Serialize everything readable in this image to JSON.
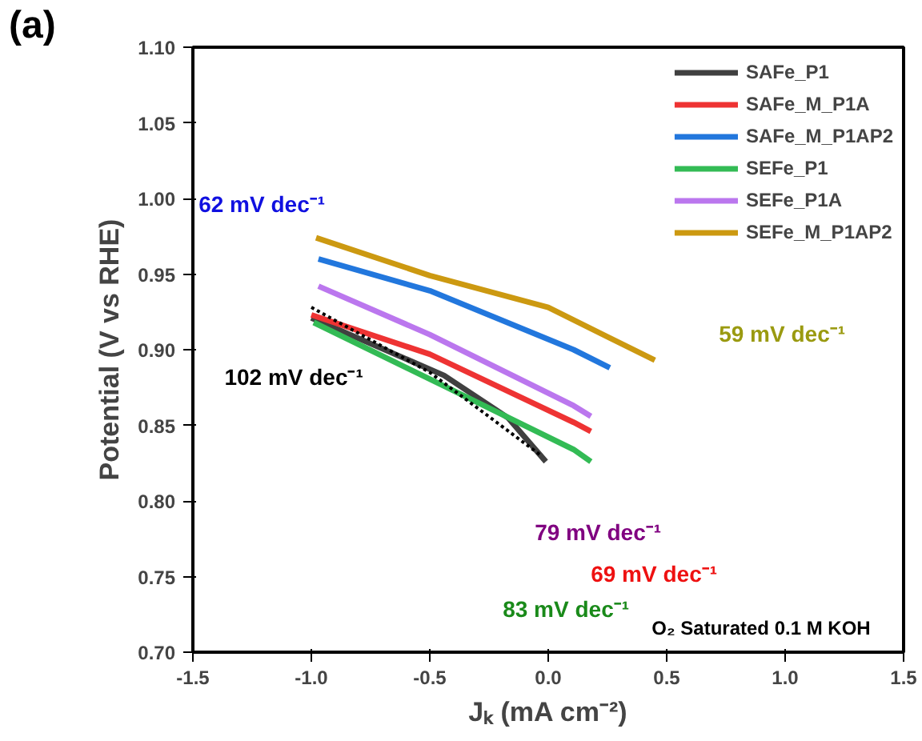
{
  "chart_data": {
    "type": "line",
    "xlabel": "Jₖ (mA cm⁻²)",
    "ylabel": "Potential (V vs RHE)",
    "xlim": [
      -1.5,
      1.5
    ],
    "xticks": [
      {
        "value": -1.5,
        "label": "-1.5"
      },
      {
        "value": -1.0,
        "label": "-1.0"
      },
      {
        "value": -0.5,
        "label": "-0.5"
      },
      {
        "value": 0.0,
        "label": "0.0"
      },
      {
        "value": 0.5,
        "label": "0.5"
      },
      {
        "value": 1.0,
        "label": "1.0"
      },
      {
        "value": 1.5,
        "label": "1.5"
      }
    ],
    "ylim": [
      0.7,
      1.1
    ],
    "yticks": [
      {
        "value": 0.7,
        "label": "0.70"
      },
      0.75,
      {
        "value": 0.8,
        "label": "0.80"
      },
      0.85,
      {
        "value": 0.9,
        "label": "0.90"
      },
      0.95,
      {
        "value": 1.0,
        "label": "1.00"
      },
      1.05,
      {
        "value": 1.1,
        "label": "1.10"
      }
    ],
    "grid": false,
    "legend": "top right",
    "line_style": "solid",
    "marker": "none",
    "series": [
      {
        "name": "SAFe_P1",
        "color": "#404040",
        "x": [
          -1.0,
          -0.44,
          -0.17,
          -0.01
        ],
        "values": [
          0.921,
          0.883,
          0.855,
          0.826
        ]
      },
      {
        "name": "SAFe_M_P1A",
        "color": "#ee3333",
        "x": [
          -1.0,
          -0.5,
          0.107,
          0.18
        ],
        "values": [
          0.923,
          0.897,
          0.852,
          0.846
        ]
      },
      {
        "name": "SAFe_M_P1AP2",
        "color": "#2277dd",
        "x": [
          -0.97,
          -0.5,
          0.107,
          0.26
        ],
        "values": [
          0.96,
          0.939,
          0.9,
          0.888
        ]
      },
      {
        "name": "SEFe_P1",
        "color": "#33bb55",
        "x": [
          -0.99,
          -0.44,
          0.107,
          0.18
        ],
        "values": [
          0.918,
          0.876,
          0.834,
          0.826
        ]
      },
      {
        "name": "SEFe_P1A",
        "color": "#bb77ee",
        "x": [
          -0.97,
          -0.5,
          0.107,
          0.18
        ],
        "values": [
          0.942,
          0.91,
          0.863,
          0.856
        ]
      },
      {
        "name": "SEFe_M_P1AP2",
        "color": "#cc9911",
        "x": [
          -0.98,
          -0.5,
          0.0,
          0.45
        ],
        "values": [
          0.974,
          0.949,
          0.928,
          0.893
        ]
      },
      {
        "color": "#000000",
        "line_style": "dotted",
        "x": [
          -1.0,
          -0.5,
          -0.03
        ],
        "values": [
          0.928,
          0.885,
          0.83
        ]
      }
    ],
    "annotations": [
      "(a)",
      "62  mV dec⁻¹",
      "102  mV dec⁻¹",
      "83  mV dec⁻¹",
      "69  mV dec⁻¹",
      "79  mV dec⁻¹",
      "59  mV dec⁻¹",
      "O₂ Saturated 0.1 M KOH"
    ]
  }
}
